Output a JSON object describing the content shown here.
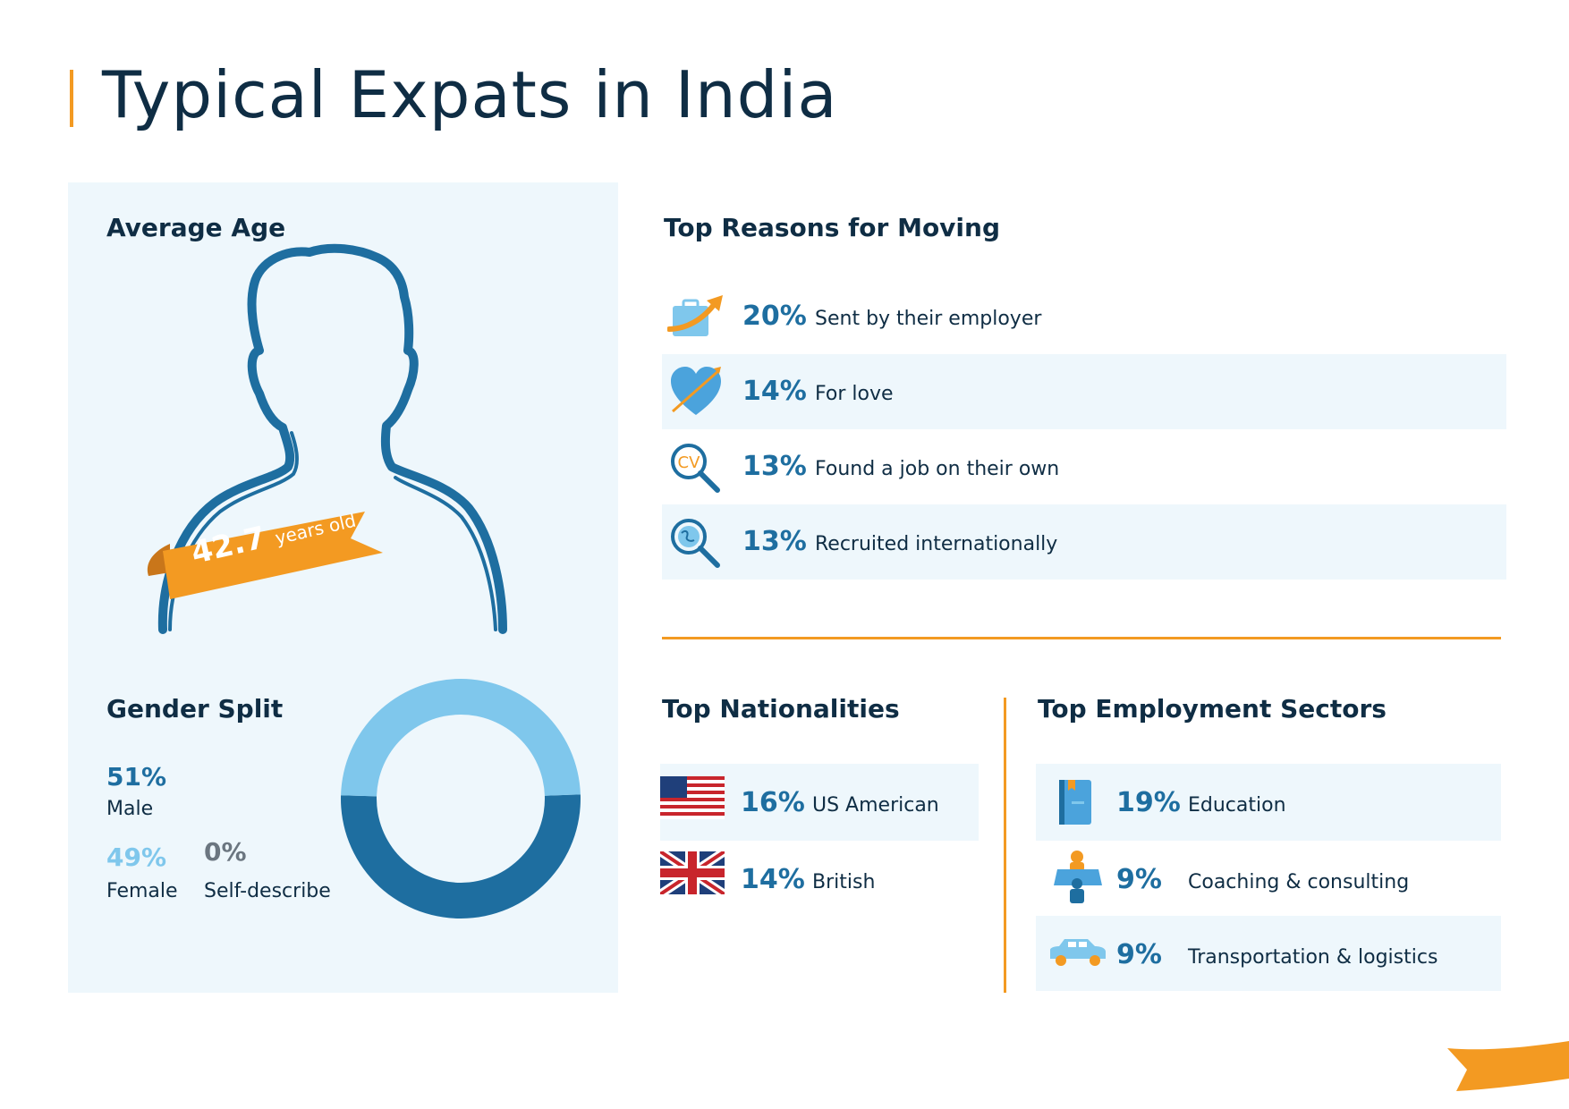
{
  "title": "Typical Expats in India",
  "average_age": {
    "heading": "Average Age",
    "value": "42.7",
    "unit": "years old"
  },
  "gender_split": {
    "heading": "Gender Split",
    "male": {
      "pct": "51%",
      "label": "Male",
      "value": 51
    },
    "female": {
      "pct": "49%",
      "label": "Female",
      "value": 49
    },
    "self_describe": {
      "pct": "0%",
      "label": "Self-describe",
      "value": 0
    }
  },
  "reasons": {
    "heading": "Top Reasons for Moving",
    "items": [
      {
        "pct": "20%",
        "label": "Sent by their employer",
        "icon": "briefcase-arrow-icon"
      },
      {
        "pct": "14%",
        "label": "For love",
        "icon": "heart-arrow-icon"
      },
      {
        "pct": "13%",
        "label": "Found a job on their own",
        "icon": "cv-search-icon",
        "icon_text": "CV"
      },
      {
        "pct": "13%",
        "label": "Recruited internationally",
        "icon": "globe-search-icon"
      }
    ]
  },
  "nationalities": {
    "heading": "Top Nationalities",
    "items": [
      {
        "pct": "16%",
        "label": "US American",
        "icon": "us-flag-icon"
      },
      {
        "pct": "14%",
        "label": "British",
        "icon": "uk-flag-icon"
      }
    ]
  },
  "sectors": {
    "heading": "Top Employment Sectors",
    "items": [
      {
        "pct": "19%",
        "label": "Education",
        "icon": "book-icon"
      },
      {
        "pct": "9%",
        "label": "Coaching & consulting",
        "icon": "presenter-icon"
      },
      {
        "pct": "9%",
        "label": "Transportation & logistics",
        "icon": "car-icon"
      }
    ]
  },
  "colors": {
    "dark_navy": "#0f2d44",
    "male_blue": "#1e6ea0",
    "female_blue": "#7fc7ec",
    "self_describe_gray": "#6b7680",
    "accent_orange": "#f39a22",
    "panel_bg": "#eef7fc"
  }
}
